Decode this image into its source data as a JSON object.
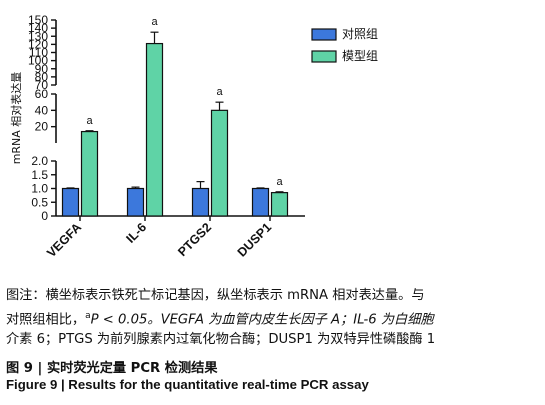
{
  "chart_data": {
    "type": "bar",
    "title": "",
    "ylabel": "mRNA 相对表达量",
    "xlabel": "",
    "categories": [
      "VEGFA",
      "IL-6",
      "PTGS2",
      "DUSP1"
    ],
    "series": [
      {
        "name": "对照组",
        "color": "#3c78dc",
        "values": [
          1.0,
          1.0,
          1.0,
          1.0
        ],
        "errors": [
          0.02,
          0.05,
          0.25,
          0.02
        ]
      },
      {
        "name": "模型组",
        "color": "#5fd3a6",
        "values": [
          14,
          121,
          40,
          0.85
        ],
        "errors": [
          1,
          14,
          10,
          0.03
        ]
      }
    ],
    "significance": [
      "a",
      "a",
      "a",
      "a"
    ],
    "legend_position": "top-right",
    "axis_segments": [
      {
        "range": [
          0,
          2.0
        ],
        "ticks": [
          0,
          0.5,
          1.0,
          1.5,
          2.0
        ],
        "tick_labels": [
          "0",
          "0.5",
          "1.0",
          "1.5",
          "2.0"
        ]
      },
      {
        "range": [
          0,
          60
        ],
        "ticks": [
          20,
          40,
          60
        ],
        "tick_labels": [
          "20",
          "40",
          "60"
        ]
      },
      {
        "range": [
          70,
          150
        ],
        "ticks": [
          70,
          80,
          90,
          100,
          110,
          120,
          130,
          140,
          150
        ],
        "tick_labels": [
          "70",
          "80",
          "90",
          "100",
          "110",
          "120",
          "130",
          "140",
          "150"
        ]
      }
    ]
  },
  "caption": {
    "zh_line1": "图注：横坐标表示铁死亡标记基因，纵坐标表示 mRNA 相对表达量。与",
    "zh_line2_pre": "对照组相比，",
    "zh_sup": "a",
    "zh_line2_post": "P < 0.05。VEGFA 为血管内皮生长因子 A；IL-6 为白细胞",
    "zh_line3": "介素 6；PTGS 为前列腺素内过氧化物合酶；DUSP1 为双特异性磷酸酶 1",
    "title_zh": "图 9  |  实时荧光定量 PCR 检测结果",
    "title_en": "Figure 9  |  Results for the quantitative real-time PCR assay"
  }
}
